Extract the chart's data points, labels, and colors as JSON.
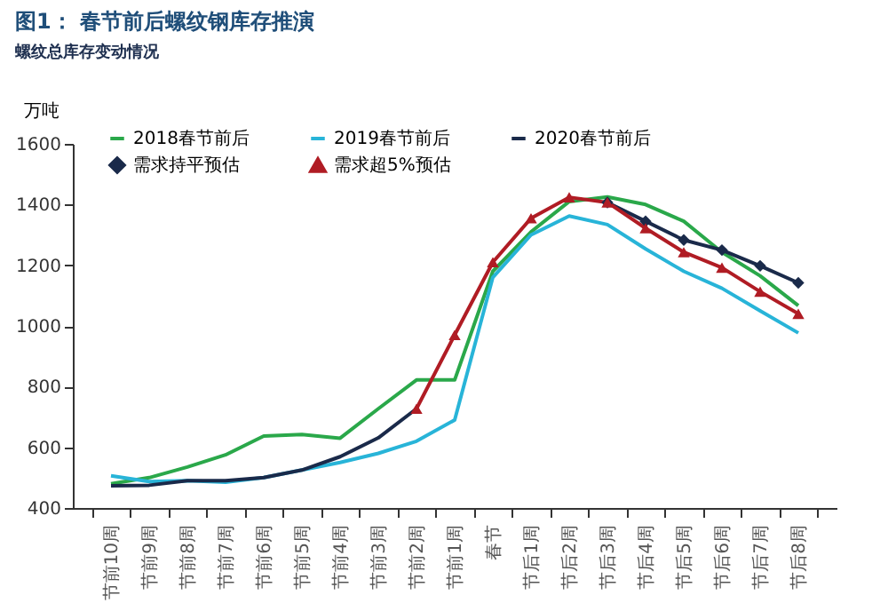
{
  "chart_data": {
    "type": "line",
    "title": "图1：  春节前后螺纹钢库存推演",
    "subtitle": "螺纹总库存变动情况",
    "ylabel": "万吨",
    "categories": [
      "节前10周",
      "节前9周",
      "节前8周",
      "节前7周",
      "节前6周",
      "节前5周",
      "节前4周",
      "节前3周",
      "节前2周",
      "节前1周",
      "春节",
      "节后1周",
      "节后2周",
      "节后3周",
      "节后4周",
      "节后5周",
      "节后6周",
      "节后7周",
      "节后8周"
    ],
    "series": [
      {
        "name": "2018春节前后",
        "color": "#2aa84a",
        "marker": "none",
        "values": [
          480,
          500,
          535,
          575,
          637,
          642,
          630,
          727,
          822,
          822,
          1180,
          1310,
          1410,
          1425,
          1400,
          1345,
          1243,
          1165,
          1067
        ]
      },
      {
        "name": "2019春节前后",
        "color": "#28b4d8",
        "marker": "none",
        "values": [
          506,
          487,
          490,
          485,
          500,
          525,
          550,
          580,
          620,
          690,
          1160,
          1300,
          1362,
          1334,
          1254,
          1180,
          1124,
          1050,
          977
        ]
      },
      {
        "name": "2020春节前后",
        "color": "#1a2a4a",
        "marker": "none",
        "values": [
          473,
          475,
          490,
          490,
          500,
          525,
          569,
          631,
          727,
          null,
          null,
          null,
          null,
          null,
          null,
          null,
          null,
          null,
          null
        ]
      },
      {
        "name": "需求持平预估",
        "color": "#1a2a4a",
        "marker": "diamond",
        "values": [
          null,
          null,
          null,
          null,
          null,
          null,
          null,
          null,
          null,
          null,
          null,
          null,
          null,
          1407,
          1345,
          1283,
          1250,
          1198,
          1142
        ]
      },
      {
        "name": "需求超5%预估",
        "color": "#b01c24",
        "marker": "triangle",
        "values": [
          null,
          null,
          null,
          null,
          null,
          null,
          null,
          null,
          727,
          970,
          1210,
          1355,
          1424,
          1407,
          1322,
          1243,
          1192,
          1113,
          1040
        ]
      }
    ],
    "ylim": [
      400,
      1600
    ],
    "yticks": [
      400,
      600,
      800,
      1000,
      1200,
      1400,
      1600
    ],
    "grid": false,
    "legend": "top"
  }
}
